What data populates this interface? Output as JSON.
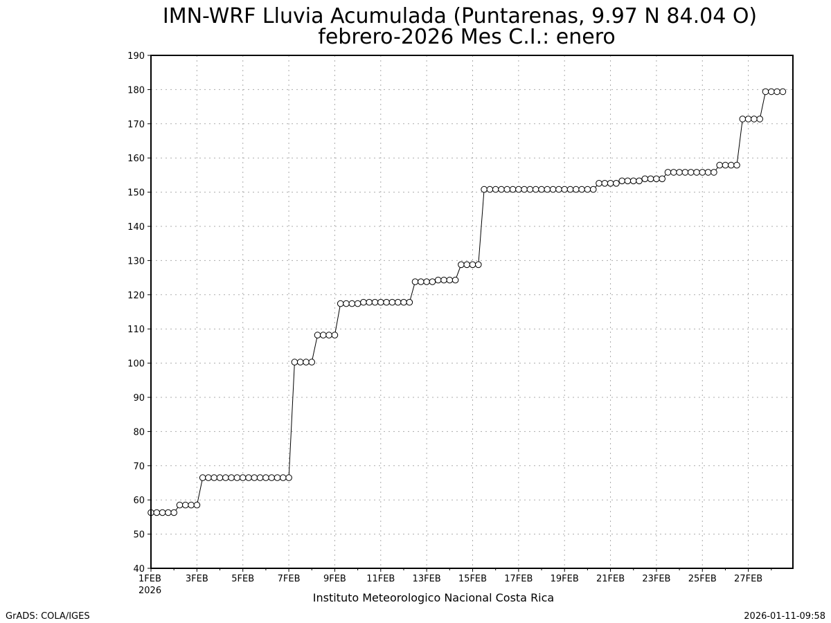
{
  "chart_data": {
    "type": "line",
    "title_line1": "IMN-WRF  Lluvia Acumulada (Puntarenas, 9.97  N 84.04  O)",
    "title_line2": "febrero-2026 Mes C.I.: enero",
    "xlabel": "Instituto Meteorologico Nacional Costa Rica",
    "ylabel": "",
    "xlim": [
      0,
      27.94
    ],
    "ylim": [
      40,
      190
    ],
    "yticks": [
      40,
      50,
      60,
      70,
      80,
      90,
      100,
      110,
      120,
      130,
      140,
      150,
      160,
      170,
      180,
      190
    ],
    "xticks": [
      {
        "x": 0,
        "label": "1FEB"
      },
      {
        "x": 2,
        "label": "3FEB"
      },
      {
        "x": 4,
        "label": "5FEB"
      },
      {
        "x": 6,
        "label": "7FEB"
      },
      {
        "x": 8,
        "label": "9FEB"
      },
      {
        "x": 10,
        "label": "11FEB"
      },
      {
        "x": 12,
        "label": "13FEB"
      },
      {
        "x": 14,
        "label": "15FEB"
      },
      {
        "x": 16,
        "label": "17FEB"
      },
      {
        "x": 18,
        "label": "19FEB"
      },
      {
        "x": 20,
        "label": "21FEB"
      },
      {
        "x": 22,
        "label": "23FEB"
      },
      {
        "x": 24,
        "label": "25FEB"
      },
      {
        "x": 26,
        "label": "27FEB"
      }
    ],
    "year_label": "2026",
    "grid": true,
    "x_step_days": 0.25,
    "values": [
      56.3,
      56.3,
      56.3,
      56.3,
      56.3,
      58.5,
      58.5,
      58.5,
      58.5,
      66.5,
      66.5,
      66.5,
      66.5,
      66.5,
      66.5,
      66.5,
      66.5,
      66.5,
      66.5,
      66.5,
      66.5,
      66.5,
      66.5,
      66.5,
      66.5,
      100.3,
      100.3,
      100.3,
      100.3,
      108.2,
      108.2,
      108.2,
      108.2,
      117.4,
      117.4,
      117.4,
      117.4,
      117.8,
      117.8,
      117.8,
      117.8,
      117.8,
      117.8,
      117.8,
      117.8,
      117.8,
      123.8,
      123.8,
      123.8,
      123.8,
      124.3,
      124.3,
      124.3,
      124.3,
      128.8,
      128.8,
      128.8,
      128.8,
      150.8,
      150.8,
      150.8,
      150.8,
      150.8,
      150.8,
      150.8,
      150.8,
      150.8,
      150.8,
      150.8,
      150.8,
      150.8,
      150.8,
      150.8,
      150.8,
      150.8,
      150.8,
      150.8,
      150.8,
      152.6,
      152.6,
      152.6,
      152.6,
      153.3,
      153.3,
      153.3,
      153.3,
      153.9,
      153.9,
      153.9,
      153.9,
      155.8,
      155.8,
      155.8,
      155.8,
      155.8,
      155.8,
      155.8,
      155.8,
      155.8,
      157.9,
      157.9,
      157.9,
      157.9,
      171.4,
      171.4,
      171.4,
      171.4,
      179.4,
      179.4,
      179.4,
      179.4
    ]
  },
  "footer": {
    "left": "GrADS: COLA/IGES",
    "right": "2026-01-11-09:58"
  }
}
